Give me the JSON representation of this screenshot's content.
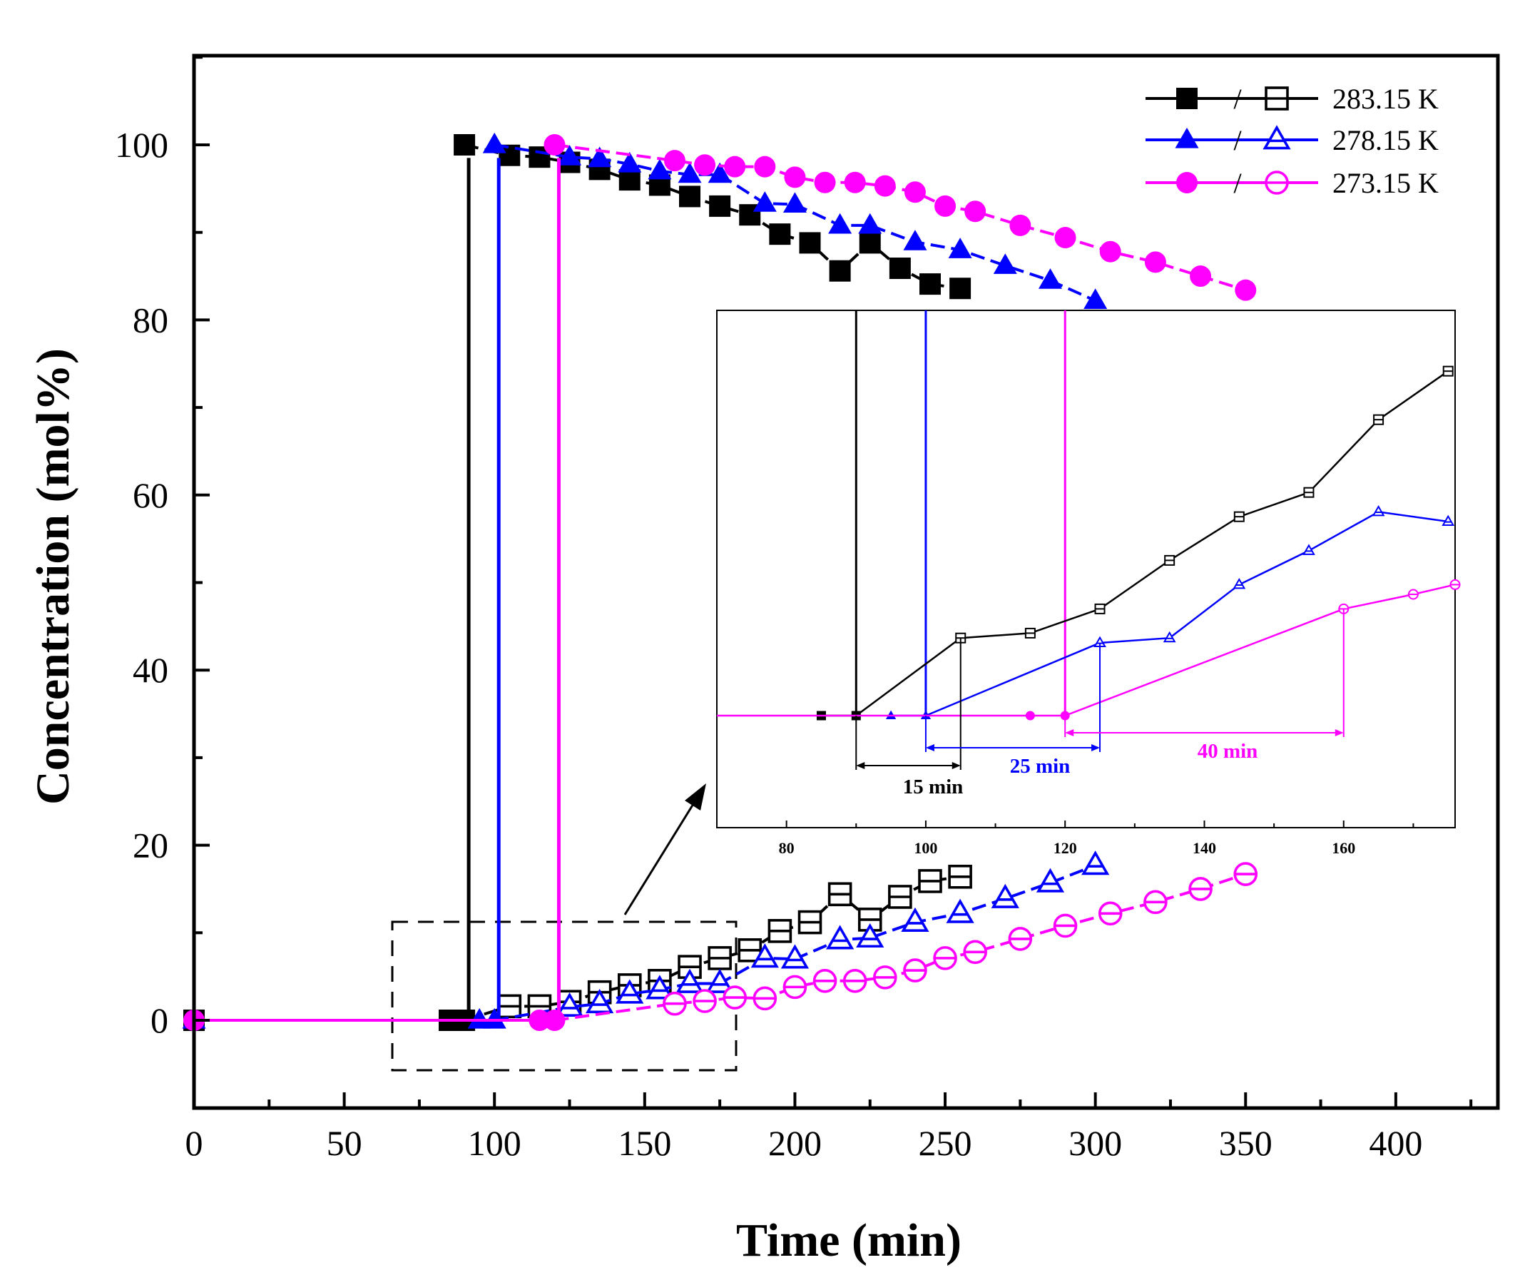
{
  "chart_data": {
    "type": "scatter",
    "title": "",
    "xlabel": "Time (min)",
    "ylabel": "Concentration (mol%)",
    "xlim": [
      0,
      425
    ],
    "ylim": [
      -10,
      110
    ],
    "xticks": [
      "0",
      "50",
      "100",
      "150",
      "200",
      "250",
      "300",
      "350",
      "400"
    ],
    "yticks": [
      "0",
      "20",
      "40",
      "60",
      "80",
      "100"
    ],
    "legend_position": "top-right",
    "series": [
      {
        "name": "283.15 K",
        "legend_label": "283.15 K",
        "legend_separator": "/",
        "color": "#000000",
        "marker": "square",
        "switch_time": 90,
        "pre": {
          "x": [
            0,
            85,
            90
          ],
          "y": [
            0,
            0,
            0
          ]
        },
        "gas": {
          "x": [
            90,
            105,
            115,
            125,
            135,
            145,
            155,
            165,
            175,
            185,
            195,
            205,
            215,
            225,
            235,
            245,
            255
          ],
          "y": [
            100,
            98.8,
            98.6,
            98.0,
            97.2,
            96.0,
            95.4,
            94.1,
            93.0,
            92.0,
            89.8,
            88.8,
            85.6,
            88.8,
            85.9,
            84.1,
            83.6
          ]
        },
        "liquid": {
          "x": [
            90,
            105,
            115,
            125,
            135,
            145,
            155,
            165,
            175,
            185,
            195,
            205,
            215,
            225,
            235,
            245,
            255
          ],
          "y": [
            0,
            1.6,
            1.6,
            2.1,
            3.2,
            4.0,
            4.5,
            6.1,
            7.1,
            8.0,
            10.2,
            11.2,
            14.4,
            11.5,
            14.1,
            15.9,
            16.4
          ]
        }
      },
      {
        "name": "278.15 K",
        "legend_label": "278.15 K",
        "legend_separator": "/",
        "color": "#0000ff",
        "marker": "triangle",
        "switch_time": 100,
        "pre": {
          "x": [
            0,
            95,
            100
          ],
          "y": [
            0,
            0,
            0
          ]
        },
        "gas": {
          "x": [
            100,
            125,
            135,
            145,
            155,
            165,
            175,
            190,
            200,
            215,
            225,
            240,
            255,
            270,
            285,
            300
          ],
          "y": [
            100,
            98.6,
            98.4,
            97.8,
            97.0,
            96.6,
            96.6,
            93.3,
            93.2,
            90.8,
            90.8,
            88.9,
            88.0,
            86.2,
            84.5,
            82.2
          ]
        },
        "liquid": {
          "x": [
            100,
            125,
            135,
            145,
            155,
            165,
            175,
            190,
            200,
            215,
            225,
            240,
            255,
            270,
            285,
            300
          ],
          "y": [
            0,
            1.5,
            1.9,
            3.0,
            3.5,
            4.2,
            4.2,
            7.1,
            7.0,
            9.2,
            9.4,
            11.2,
            12.2,
            13.9,
            15.7,
            17.7
          ]
        }
      },
      {
        "name": "273.15 K",
        "legend_label": "273.15 K",
        "legend_separator": "/",
        "color": "#ff00ff",
        "marker": "circle",
        "switch_time": 120,
        "pre": {
          "x": [
            0,
            115,
            120
          ],
          "y": [
            0,
            0,
            0
          ]
        },
        "gas": {
          "x": [
            120,
            160,
            170,
            180,
            190,
            200,
            210,
            220,
            230,
            240,
            250,
            260,
            275,
            290,
            305,
            320,
            335,
            350
          ],
          "y": [
            100,
            98.2,
            97.7,
            97.5,
            97.5,
            96.3,
            95.7,
            95.7,
            95.3,
            94.6,
            93.0,
            92.4,
            90.8,
            89.4,
            87.8,
            86.6,
            85.0,
            83.4
          ]
        },
        "liquid": {
          "x": [
            120,
            160,
            170,
            180,
            190,
            200,
            210,
            220,
            230,
            240,
            250,
            260,
            275,
            290,
            305,
            320,
            335,
            350
          ],
          "y": [
            0,
            1.9,
            2.2,
            2.6,
            2.5,
            3.8,
            4.5,
            4.5,
            4.9,
            5.7,
            7.1,
            7.8,
            9.3,
            10.8,
            12.2,
            13.5,
            15.0,
            16.7
          ]
        }
      }
    ],
    "inset": {
      "xlim": [
        70,
        176
      ],
      "xticks": [
        "80",
        "100",
        "120",
        "140",
        "160"
      ],
      "series": [
        {
          "name": "283.15 K",
          "x": [
            85,
            90,
            105,
            115,
            125,
            135,
            145,
            155,
            165,
            175
          ],
          "y": [
            0,
            0,
            1.6,
            1.7,
            2.2,
            3.2,
            4.1,
            4.6,
            6.1,
            7.1
          ]
        },
        {
          "name": "278.15 K",
          "x": [
            95,
            100,
            125,
            135,
            145,
            155,
            165,
            175
          ],
          "y": [
            0,
            0,
            1.5,
            1.6,
            2.7,
            3.4,
            4.2,
            4.0
          ]
        },
        {
          "name": "273.15 K",
          "x": [
            70,
            115,
            120,
            160,
            170,
            176
          ],
          "y": [
            0,
            0,
            0,
            2.2,
            2.5,
            2.7
          ]
        }
      ],
      "annotations": [
        {
          "label": "15 min",
          "from": 90,
          "to": 105,
          "color": "#000000"
        },
        {
          "label": "25 min",
          "from": 100,
          "to": 125,
          "color": "#0000ff"
        },
        {
          "label": "40 min",
          "from": 120,
          "to": 160,
          "color": "#ff00ff"
        }
      ]
    }
  }
}
